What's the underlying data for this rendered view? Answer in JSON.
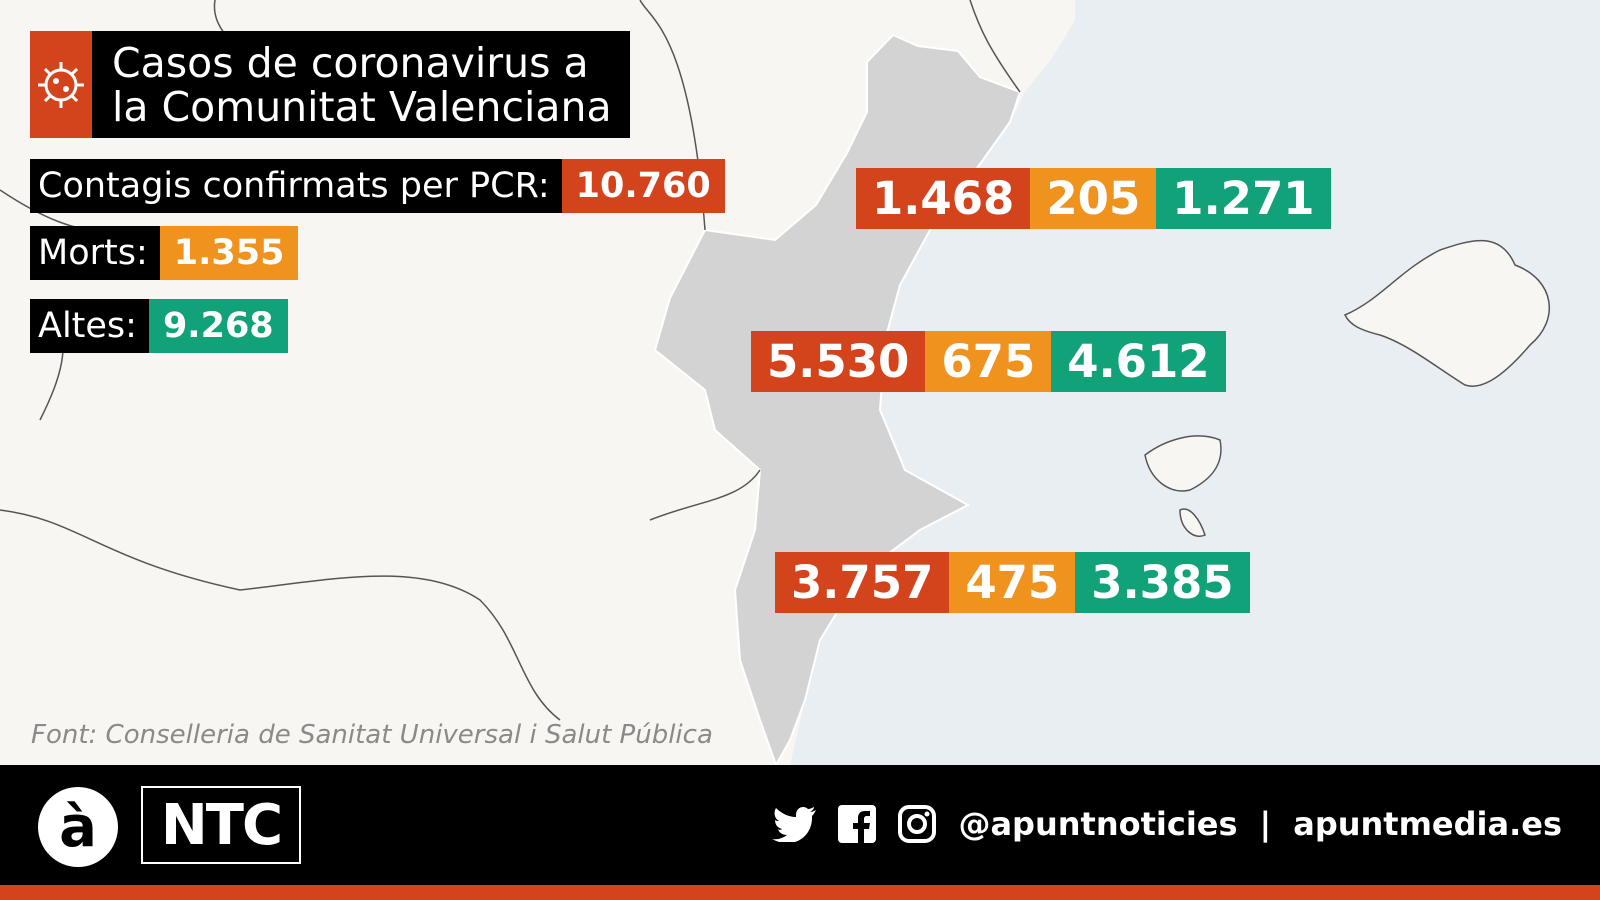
{
  "title": [
    "Casos de coronavirus a",
    "la Comunitat Valenciana"
  ],
  "summary": [
    {
      "label": "Contagis confirmats per PCR:",
      "value": "10.760"
    },
    {
      "label": "Morts:",
      "value": "1.355"
    },
    {
      "label": "Altes:",
      "value": "9.268"
    }
  ],
  "provinces": [
    {
      "cases": "1.468",
      "deaths": "205",
      "recovered": "1.271"
    },
    {
      "cases": "5.530",
      "deaths": "675",
      "recovered": "4.612"
    },
    {
      "cases": "3.757",
      "deaths": "475",
      "recovered": "3.385"
    }
  ],
  "source": "Font: Conselleria de Sanitat Universal i Salut Pública",
  "footer": {
    "logo": "à",
    "brand": "NTC",
    "handle": "@apuntnoticies",
    "separator": "|",
    "website": "apuntmedia.es"
  }
}
